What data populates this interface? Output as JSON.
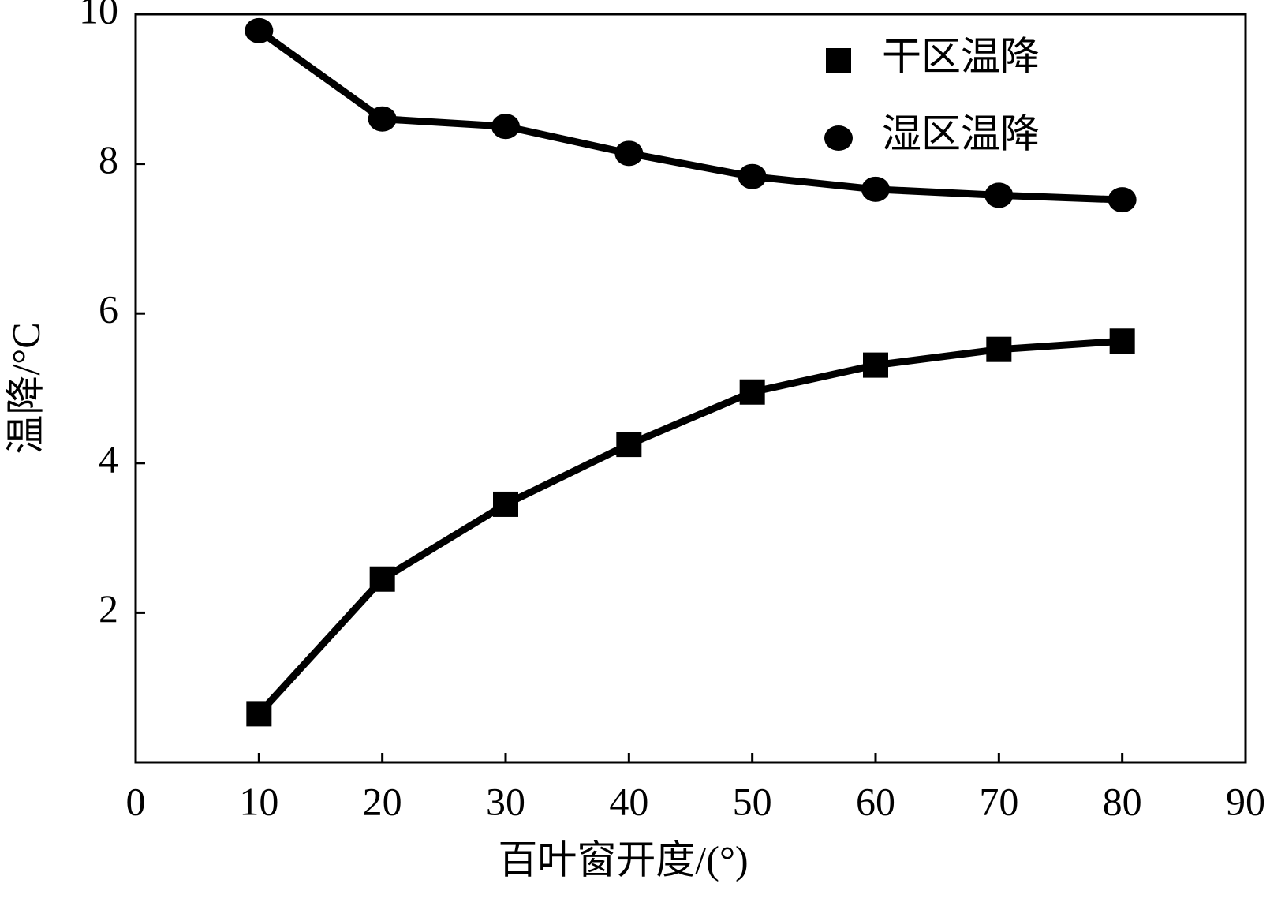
{
  "chart_data": {
    "type": "line",
    "x_label": "百叶窗开度/(°)",
    "y_label": "温降/°C",
    "x": [
      10,
      20,
      30,
      40,
      50,
      60,
      70,
      80
    ],
    "series": [
      {
        "name": "干区温降",
        "color": "#000000",
        "marker": "square",
        "values": [
          0.65,
          2.45,
          3.45,
          4.25,
          4.95,
          5.31,
          5.52,
          5.63
        ]
      },
      {
        "name": "湿区温降",
        "color": "#000000",
        "marker": "circle",
        "values": [
          9.78,
          8.6,
          8.5,
          8.14,
          7.83,
          7.66,
          7.58,
          7.52
        ]
      }
    ],
    "xlim": [
      0,
      90
    ],
    "xticks": [
      0,
      10,
      20,
      30,
      40,
      50,
      60,
      70,
      80,
      90
    ],
    "ylim": [
      0,
      10
    ],
    "yticks": [
      2,
      4,
      6,
      8,
      10
    ],
    "legend": "upper-right",
    "grid": false
  }
}
